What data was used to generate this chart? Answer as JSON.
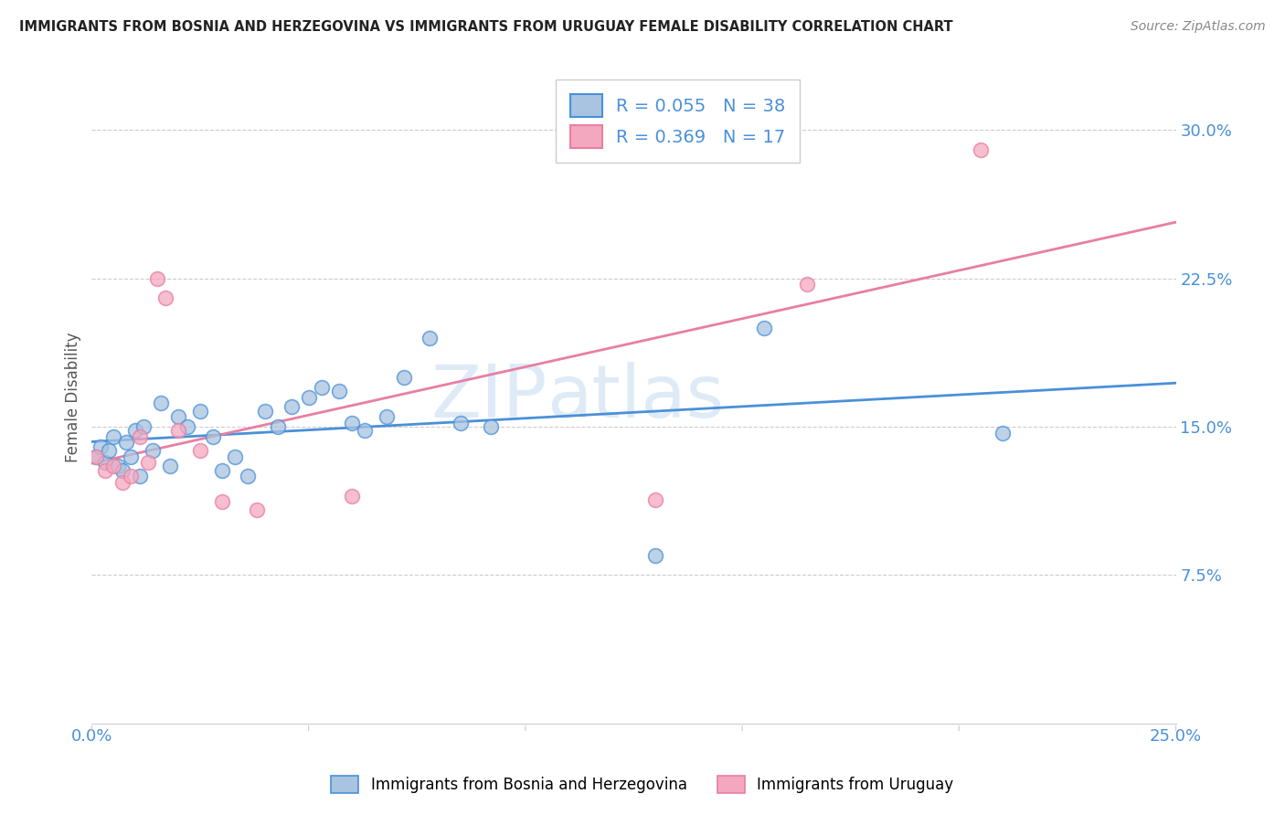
{
  "title": "IMMIGRANTS FROM BOSNIA AND HERZEGOVINA VS IMMIGRANTS FROM URUGUAY FEMALE DISABILITY CORRELATION CHART",
  "source": "Source: ZipAtlas.com",
  "ylabel": "Female Disability",
  "xlim": [
    0.0,
    0.25
  ],
  "ylim": [
    0.0,
    0.33
  ],
  "yticks": [
    0.075,
    0.15,
    0.225,
    0.3
  ],
  "ytick_labels": [
    "7.5%",
    "15.0%",
    "22.5%",
    "30.0%"
  ],
  "xticks": [
    0.0,
    0.05,
    0.1,
    0.15,
    0.2,
    0.25
  ],
  "xtick_labels": [
    "0.0%",
    "",
    "",
    "",
    "",
    "25.0%"
  ],
  "bosnia_color": "#a8c4e0",
  "uruguay_color": "#f4a8c0",
  "bosnia_line_color": "#4a90d9",
  "uruguay_line_color": "#e87fa0",
  "bosnia_R": 0.055,
  "bosnia_N": 38,
  "uruguay_R": 0.369,
  "uruguay_N": 17,
  "bosnia_x": [
    0.001,
    0.002,
    0.003,
    0.004,
    0.005,
    0.006,
    0.007,
    0.008,
    0.009,
    0.01,
    0.011,
    0.012,
    0.014,
    0.016,
    0.018,
    0.02,
    0.022,
    0.025,
    0.028,
    0.03,
    0.033,
    0.036,
    0.04,
    0.043,
    0.046,
    0.05,
    0.053,
    0.057,
    0.06,
    0.063,
    0.068,
    0.072,
    0.078,
    0.085,
    0.092,
    0.13,
    0.155,
    0.21
  ],
  "bosnia_y": [
    0.135,
    0.14,
    0.132,
    0.138,
    0.145,
    0.13,
    0.128,
    0.142,
    0.135,
    0.148,
    0.125,
    0.15,
    0.138,
    0.162,
    0.13,
    0.155,
    0.15,
    0.158,
    0.145,
    0.128,
    0.135,
    0.125,
    0.158,
    0.15,
    0.16,
    0.165,
    0.17,
    0.168,
    0.152,
    0.148,
    0.155,
    0.175,
    0.195,
    0.152,
    0.15,
    0.085,
    0.2,
    0.147
  ],
  "uruguay_x": [
    0.001,
    0.003,
    0.005,
    0.007,
    0.009,
    0.011,
    0.013,
    0.015,
    0.017,
    0.02,
    0.025,
    0.03,
    0.038,
    0.06,
    0.13,
    0.165,
    0.205
  ],
  "uruguay_y": [
    0.135,
    0.128,
    0.13,
    0.122,
    0.125,
    0.145,
    0.132,
    0.225,
    0.215,
    0.148,
    0.138,
    0.112,
    0.108,
    0.115,
    0.113,
    0.222,
    0.29
  ],
  "watermark_zip": "ZIP",
  "watermark_atlas": "atlas",
  "legend_label_bosnia": "Immigrants from Bosnia and Herzegovina",
  "legend_label_uruguay": "Immigrants from Uruguay",
  "background_color": "#ffffff",
  "grid_color": "#cccccc"
}
